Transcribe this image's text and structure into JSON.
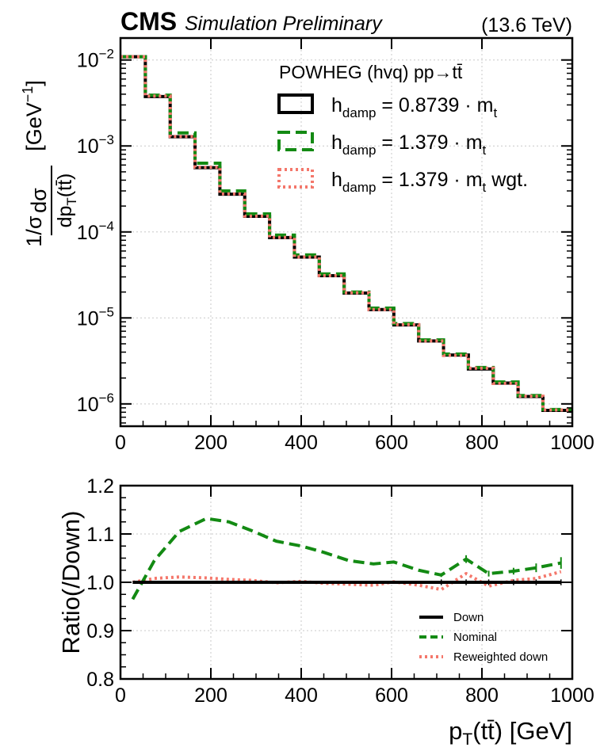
{
  "header": {
    "experiment": "CMS",
    "status": "Simulation Preliminary",
    "energy": "(13.6 TeV)"
  },
  "colors": {
    "down": "#000000",
    "nominal": "#138a13",
    "reweighted": "#f4776b",
    "grid": "#c8c8c8"
  },
  "chart_data": [
    {
      "type": "line",
      "panel": "top",
      "style": "step histogram",
      "yscale": "log",
      "xlim": [
        0,
        1000
      ],
      "ylim": [
        5.5e-07,
        0.018
      ],
      "grid": true,
      "legend_placement": "top-right",
      "legend_title": "POWHEG (hvq) pp→tt̄",
      "ylabel": "1/σ dσ/dp_T(tt̄) [GeV^-1]",
      "x_ticks": [
        "0",
        "200",
        "400",
        "600",
        "800",
        "1000"
      ],
      "y_ticks": [
        {
          "value": 0.01,
          "base": "10",
          "exp": "−2"
        },
        {
          "value": 0.001,
          "base": "10",
          "exp": "−3"
        },
        {
          "value": 0.0001,
          "base": "10",
          "exp": "−4"
        },
        {
          "value": 1e-05,
          "base": "10",
          "exp": "−5"
        },
        {
          "value": 1e-06,
          "base": "10",
          "exp": "−6"
        }
      ],
      "bin_edges": [
        0,
        55,
        110,
        165,
        220,
        275,
        330,
        385,
        440,
        495,
        550,
        605,
        660,
        715,
        770,
        825,
        880,
        935,
        1000
      ],
      "series": [
        {
          "name": "h_damp = 0.8739 · m_t",
          "legend": {
            "base": "h",
            "sub": "damp",
            "text": " = 0.8739 · m",
            "sub2": "t",
            "tail": ""
          },
          "style": "solid",
          "values": [
            0.0109,
            0.00375,
            0.00128,
            0.00056,
            0.000275,
            0.000152,
            8.6e-05,
            5.1e-05,
            3.1e-05,
            1.95e-05,
            1.25e-05,
            8.3e-06,
            5.4e-06,
            3.7e-06,
            2.55e-06,
            1.75e-06,
            1.22e-06,
            8.4e-07
          ]
        },
        {
          "name": "h_damp = 1.379 · m_t",
          "legend": {
            "base": "h",
            "sub": "damp",
            "text": " = 1.379 · m",
            "sub2": "t",
            "tail": ""
          },
          "style": "dashed",
          "values": [
            0.0109,
            0.0039,
            0.00142,
            0.00063,
            0.0003,
            0.000162,
            9.2e-05,
            5.4e-05,
            3.25e-05,
            2e-05,
            1.3e-05,
            8.6e-06,
            5.55e-06,
            3.8e-06,
            2.65e-06,
            1.8e-06,
            1.25e-06,
            8.6e-07
          ]
        },
        {
          "name": "h_damp = 1.379 · m_t wgt.",
          "legend": {
            "base": "h",
            "sub": "damp",
            "text": " = 1.379 · m",
            "sub2": "t",
            "tail": " wgt."
          },
          "style": "dotted",
          "values": [
            0.0109,
            0.0038,
            0.00129,
            0.000565,
            0.000277,
            0.000153,
            8.65e-05,
            5.12e-05,
            3.11e-05,
            1.96e-05,
            1.25e-05,
            8.35e-06,
            5.4e-06,
            3.66e-06,
            2.6e-06,
            1.73e-06,
            1.23e-06,
            8.5e-07
          ]
        }
      ]
    },
    {
      "type": "line",
      "panel": "bottom",
      "xlim": [
        0,
        1000
      ],
      "ylim": [
        0.8,
        1.2
      ],
      "grid": true,
      "legend_placement": "bottom-right",
      "xlabel": "p_T(tt̄) [GeV]",
      "ylabel": "Ratio(/Down)",
      "x_ticks": [
        "0",
        "200",
        "400",
        "600",
        "800",
        "1000"
      ],
      "y_ticks": [
        "0.8",
        "0.9",
        "1.0",
        "1.1",
        "1.2"
      ],
      "y_tick_values": [
        0.8,
        0.9,
        1.0,
        1.1,
        1.2
      ],
      "x": [
        27,
        75,
        130,
        190,
        240,
        290,
        345,
        400,
        450,
        505,
        560,
        605,
        660,
        710,
        765,
        815,
        870,
        920,
        975
      ],
      "series": [
        {
          "name": "Down",
          "style": "solid",
          "values": [
            1.0,
            1.0,
            1.0,
            1.0,
            1.0,
            1.0,
            1.0,
            1.0,
            1.0,
            1.0,
            1.0,
            1.0,
            1.0,
            1.0,
            1.0,
            1.0,
            1.0,
            1.0,
            1.0
          ]
        },
        {
          "name": "Nominal",
          "style": "dashed",
          "values": [
            0.965,
            1.045,
            1.105,
            1.132,
            1.125,
            1.107,
            1.085,
            1.075,
            1.062,
            1.045,
            1.038,
            1.042,
            1.025,
            1.015,
            1.048,
            1.018,
            1.023,
            1.03,
            1.04
          ]
        },
        {
          "name": "Reweighted down",
          "style": "dotted",
          "values": [
            1.0,
            1.008,
            1.011,
            1.009,
            1.006,
            1.004,
            0.999,
            1.002,
            0.998,
            0.996,
            0.994,
            1.001,
            0.994,
            0.985,
            1.018,
            0.992,
            1.004,
            1.008,
            1.022
          ]
        }
      ],
      "nominal_errors": [
        0.0,
        0.0,
        0.0,
        0.0,
        0.0,
        0.0,
        0.0,
        0.0,
        0.0,
        0.0,
        0.0,
        0.0,
        0.0,
        0.004,
        0.008,
        0.006,
        0.007,
        0.009,
        0.012
      ]
    }
  ]
}
